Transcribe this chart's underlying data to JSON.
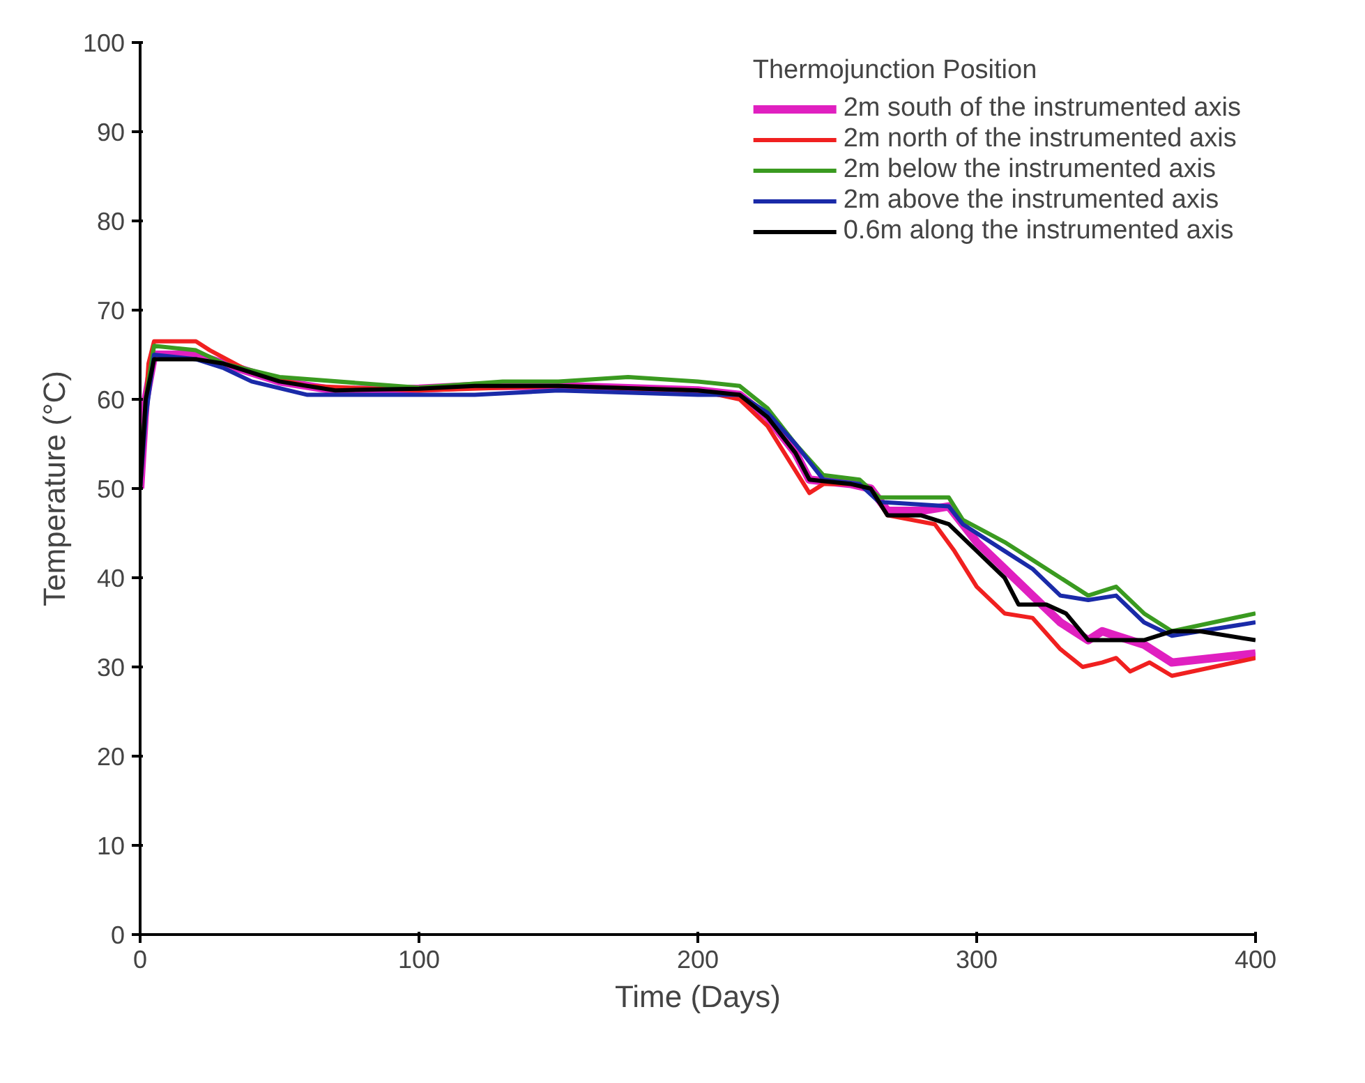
{
  "chart_data": {
    "type": "line",
    "xlabel": "Time (Days)",
    "ylabel": "Temperature (°C)",
    "legend_title": "Thermojunction Position",
    "xlim": [
      0,
      400
    ],
    "ylim": [
      0,
      100
    ],
    "xticks": [
      0,
      100,
      200,
      300,
      400
    ],
    "yticks": [
      0,
      10,
      20,
      30,
      40,
      50,
      60,
      70,
      80,
      90,
      100
    ],
    "grid": false,
    "legend": "top right",
    "line_style": "solid",
    "series": [
      {
        "name": "2m south of the instrumented axis",
        "color": "#e020c0",
        "x": [
          0,
          2,
          5,
          20,
          30,
          50,
          70,
          100,
          120,
          150,
          200,
          215,
          225,
          235,
          240,
          255,
          262,
          268,
          280,
          290,
          300,
          310,
          320,
          330,
          340,
          345,
          350,
          360,
          370,
          400
        ],
        "values": [
          50,
          60,
          65,
          65,
          64,
          62,
          61,
          61.2,
          61.5,
          61.5,
          61,
          60.5,
          58,
          54,
          51,
          50.5,
          50,
          47.5,
          47.5,
          48,
          44,
          41,
          38,
          35,
          33,
          34,
          33.5,
          32.5,
          30.5,
          31.5
        ]
      },
      {
        "name": "2m north of the instrumented axis",
        "color": "#f02020",
        "x": [
          0,
          3,
          5,
          20,
          25,
          40,
          60,
          100,
          150,
          200,
          215,
          225,
          235,
          240,
          245,
          255,
          262,
          268,
          285,
          292,
          300,
          310,
          320,
          330,
          338,
          345,
          350,
          355,
          362,
          370,
          400
        ],
        "values": [
          50,
          64,
          66.5,
          66.5,
          65.5,
          63,
          61.5,
          61,
          61.5,
          61,
          60,
          57,
          52,
          49.5,
          50.5,
          50.5,
          50,
          47,
          46,
          43,
          39,
          36,
          35.5,
          32,
          30,
          30.5,
          31,
          29.5,
          30.5,
          29,
          31
        ]
      },
      {
        "name": "2m below the instrumented axis",
        "color": "#3a9a20",
        "x": [
          0,
          2,
          5,
          20,
          30,
          50,
          100,
          130,
          150,
          175,
          200,
          215,
          225,
          235,
          245,
          258,
          265,
          290,
          295,
          310,
          320,
          330,
          340,
          345,
          350,
          360,
          370,
          400
        ],
        "values": [
          50,
          60,
          66,
          65.5,
          64,
          62.5,
          61.3,
          62,
          62,
          62.5,
          62,
          61.5,
          59,
          55,
          51.5,
          51,
          49,
          49,
          46.5,
          44,
          42,
          40,
          38,
          38.5,
          39,
          36,
          34,
          36
        ]
      },
      {
        "name": "2m above the instrumented axis",
        "color": "#1a2aa8",
        "x": [
          0,
          2,
          5,
          20,
          30,
          40,
          60,
          100,
          120,
          150,
          200,
          215,
          225,
          235,
          245,
          258,
          265,
          290,
          295,
          310,
          320,
          330,
          340,
          350,
          360,
          370,
          400
        ],
        "values": [
          50,
          58,
          65,
          64.5,
          63.5,
          62,
          60.5,
          60.5,
          60.5,
          61,
          60.5,
          60.5,
          58.5,
          55,
          51,
          50.5,
          48.5,
          48,
          46,
          43,
          41,
          38,
          37.5,
          38,
          35,
          33.5,
          35
        ]
      },
      {
        "name": "0.6m along the instrumented axis",
        "color": "#000000",
        "x": [
          0,
          2,
          5,
          20,
          30,
          50,
          70,
          100,
          120,
          150,
          200,
          215,
          225,
          235,
          240,
          255,
          262,
          268,
          280,
          290,
          300,
          310,
          315,
          325,
          332,
          340,
          350,
          360,
          370,
          380,
          400
        ],
        "values": [
          50,
          60,
          64.5,
          64.5,
          64,
          62,
          61,
          61.2,
          61.5,
          61.5,
          61,
          60.5,
          58,
          54,
          51,
          50.5,
          50,
          47,
          47,
          46,
          43,
          40,
          37,
          37,
          36,
          33,
          33,
          33,
          34,
          34,
          33
        ]
      }
    ]
  }
}
